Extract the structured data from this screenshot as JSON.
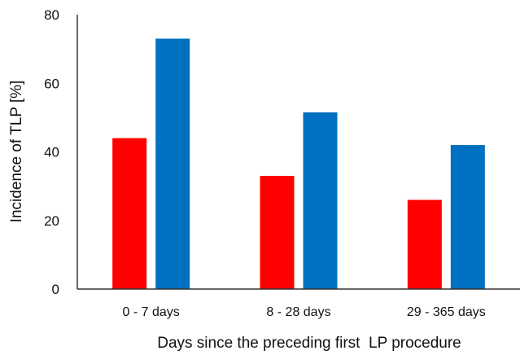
{
  "chart_data": {
    "type": "bar",
    "categories": [
      "0 - 7 days",
      "8 - 28 days",
      "29 - 365 days"
    ],
    "series": [
      {
        "values": [
          44,
          33,
          26
        ],
        "color": "#ff0000"
      },
      {
        "values": [
          73,
          51.5,
          42
        ],
        "color": "#0070c0"
      }
    ],
    "title": "",
    "xlabel": "Days since the preceding first  LP procedure",
    "ylabel": "Incidence of TLP [%]",
    "ylim": [
      0,
      80
    ],
    "yticks": [
      0,
      20,
      40,
      60,
      80
    ],
    "grid": false,
    "legend": "none"
  }
}
